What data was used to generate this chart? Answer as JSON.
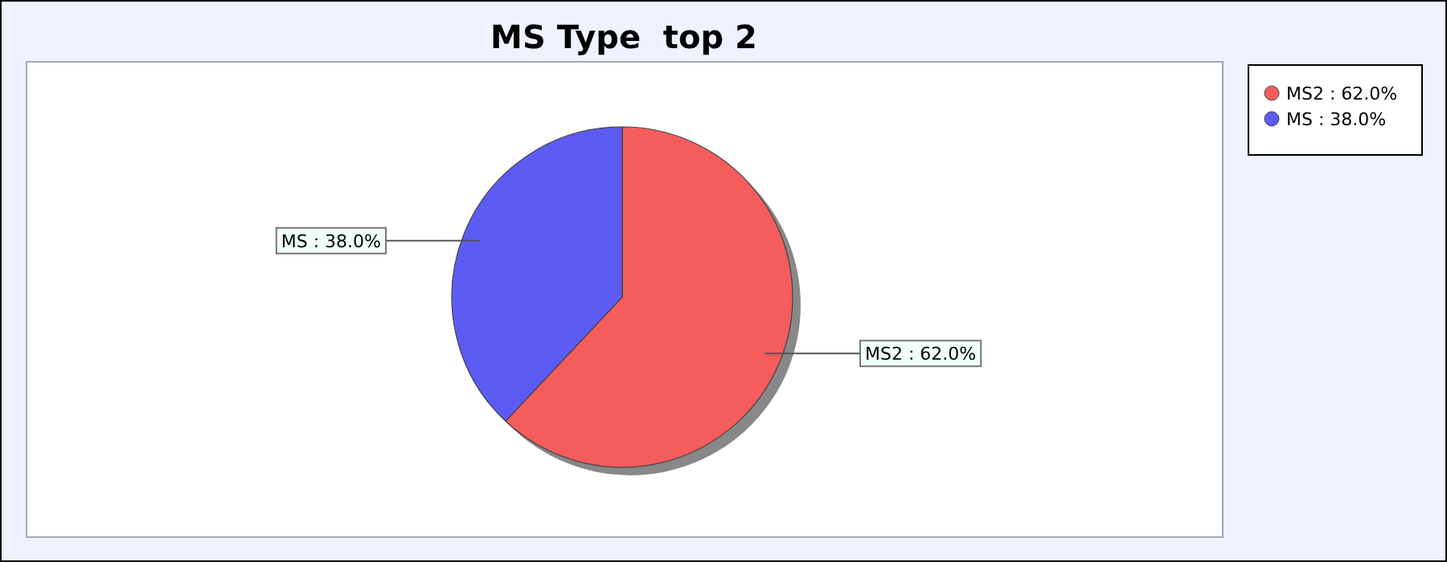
{
  "chart_data": {
    "type": "pie",
    "title": "MS Type  top 2",
    "categories": [
      "MS2 : 62.0%",
      "MS : 38.0%"
    ],
    "values": [
      62,
      38
    ],
    "colors": [
      "#f55c5c",
      "#5c5cf5"
    ],
    "legend": "right"
  }
}
